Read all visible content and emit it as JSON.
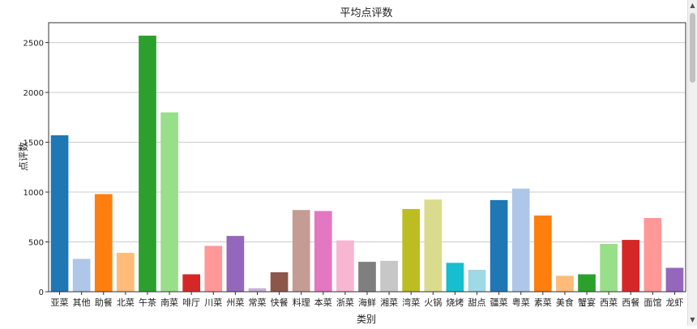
{
  "chart_data": {
    "type": "bar",
    "title": "平均点评数",
    "xlabel": "类别",
    "ylabel": "点评数",
    "ylim": [
      0,
      2700
    ],
    "yticks": [
      0,
      500,
      1000,
      1500,
      2000,
      2500
    ],
    "ytick_labels": [
      "0",
      "500",
      "1000",
      "1500",
      "2000",
      "2500"
    ],
    "grid": "horizontal",
    "categories": [
      "亚菜",
      "其他",
      "助餐",
      "北菜",
      "午茶",
      "南菜",
      "啡厅",
      "川菜",
      "州菜",
      "常菜",
      "快餐",
      "料理",
      "本菜",
      "浙菜",
      "海鲜",
      "湘菜",
      "湾菜",
      "火锅",
      "烧烤",
      "甜点",
      "疆菜",
      "粤菜",
      "素菜",
      "美食",
      "蟹宴",
      "西菜",
      "西餐",
      "面馆",
      "龙虾"
    ],
    "values": [
      1570,
      330,
      980,
      390,
      2570,
      1800,
      175,
      460,
      560,
      35,
      195,
      820,
      810,
      515,
      300,
      310,
      830,
      925,
      290,
      220,
      920,
      1035,
      765,
      160,
      175,
      480,
      520,
      740,
      240
    ],
    "colors": [
      "#1f77b4",
      "#aec7e8",
      "#ff7f0e",
      "#ffbb78",
      "#2ca02c",
      "#98df8a",
      "#d62728",
      "#ff9896",
      "#9467bd",
      "#c5b0d5",
      "#8c564b",
      "#c49c94",
      "#e377c2",
      "#f7b6d2",
      "#7f7f7f",
      "#c7c7c7",
      "#bcbd22",
      "#dbdb8d",
      "#17becf",
      "#9edae5",
      "#1f77b4",
      "#aec7e8",
      "#ff7f0e",
      "#ffbb78",
      "#2ca02c",
      "#98df8a",
      "#d62728",
      "#ff9896",
      "#9467bd"
    ]
  },
  "scrollbar": {
    "up_arrow": "▲",
    "down_arrow": "▼"
  }
}
